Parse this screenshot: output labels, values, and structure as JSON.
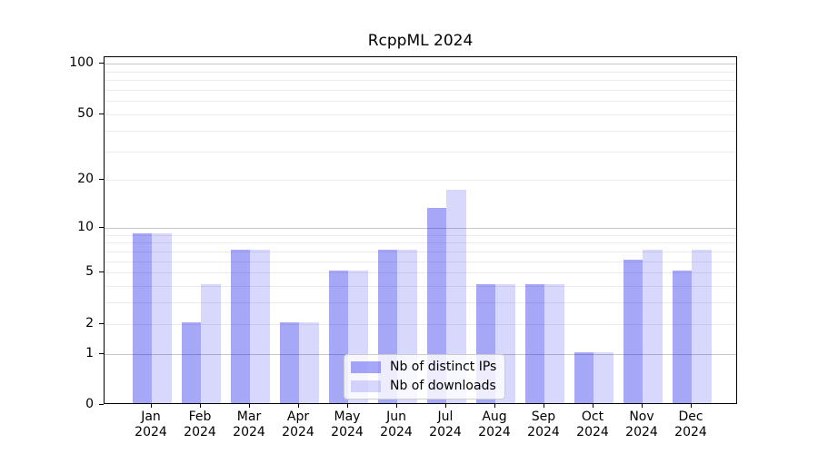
{
  "title": "RcppML 2024",
  "chart_data": {
    "type": "bar",
    "title": "RcppML 2024",
    "categories": [
      "Jan",
      "Feb",
      "Mar",
      "Apr",
      "May",
      "Jun",
      "Jul",
      "Aug",
      "Sep",
      "Oct",
      "Nov",
      "Dec"
    ],
    "category_year": "2024",
    "series": [
      {
        "name": "Nb of distinct IPs",
        "color": "rgba(10,10,235,0.36)",
        "solid_color": "#a7a7f8",
        "values": [
          9,
          2,
          7,
          2,
          5,
          7,
          13,
          4,
          4,
          1,
          6,
          5
        ]
      },
      {
        "name": "Nb of downloads",
        "color": "rgba(10,10,235,0.16)",
        "solid_color": "#d8d8fa",
        "values": [
          9,
          4,
          7,
          2,
          5,
          7,
          17,
          4,
          4,
          1,
          7,
          7
        ]
      }
    ],
    "y_axis": {
      "scale": "log10(1+v)",
      "range": [
        0,
        100
      ],
      "tick_labels": [
        "100",
        "50",
        "20",
        "10",
        "5",
        "2",
        "1",
        "0"
      ],
      "tick_values": [
        100,
        50,
        20,
        10,
        5,
        2,
        1,
        0
      ],
      "minor_gridline_values": [
        2,
        3,
        4,
        5,
        6,
        7,
        8,
        9,
        20,
        30,
        40,
        50,
        60,
        70,
        80,
        90
      ],
      "major_gridline_values": [
        1,
        10,
        100
      ]
    },
    "grid": {
      "major_color": "#c6c6c6",
      "minor_color": "#ebebeb"
    },
    "legend": {
      "position": "inside-bottom-center"
    }
  }
}
